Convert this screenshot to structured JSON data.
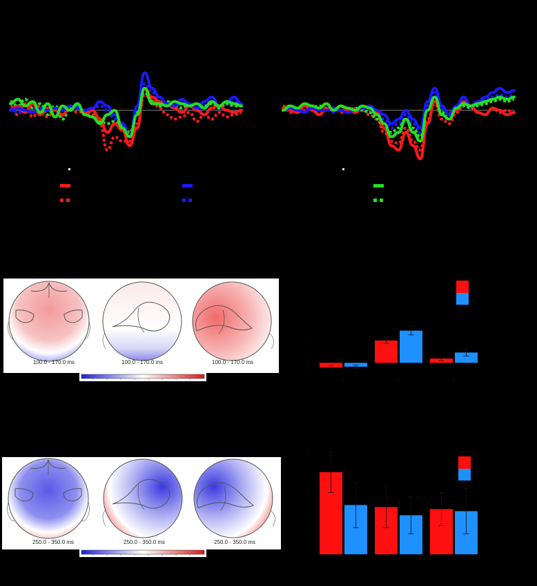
{
  "colors": {
    "red": "#ff1a1a",
    "blue": "#1a1aff",
    "green": "#22e022",
    "bar_red": "#ff1010",
    "bar_blue": "#1e90ff",
    "head_outline": "#555555",
    "background": "#000000"
  },
  "topomaps": {
    "row1": [
      "100.0 - 170.0 ms",
      "100.0 - 170.0 ms",
      "100.0 - 170.0 ms"
    ],
    "row2": [
      "250.0 - 350.0 ms",
      "250.0 - 350.0 ms",
      "250.0 - 350.0 ms"
    ]
  },
  "chart_data": [
    {
      "type": "line",
      "panel": "left waveforms",
      "series": [
        {
          "color": "red",
          "style": "solid",
          "values": [
            0,
            2,
            -1,
            3,
            -2,
            1,
            0,
            -2,
            2,
            1,
            -1,
            0,
            -4,
            -10,
            -6,
            -9,
            -16,
            -8,
            10,
            6,
            4,
            3,
            1,
            -1,
            2,
            0,
            -2,
            1,
            2,
            0,
            -1,
            0
          ]
        },
        {
          "color": "red",
          "style": "dotted",
          "values": [
            2,
            -2,
            3,
            -3,
            2,
            -3,
            1,
            -3,
            2,
            -1,
            0,
            -2,
            -6,
            -18,
            -12,
            -14,
            -14,
            -6,
            7,
            5,
            1,
            -2,
            -4,
            -3,
            -1,
            -5,
            -2,
            -4,
            -1,
            -3,
            -2,
            -1
          ]
        },
        {
          "color": "blue",
          "style": "solid",
          "values": [
            0,
            1,
            0,
            -1,
            1,
            0,
            1,
            0,
            2,
            1,
            0,
            1,
            4,
            2,
            -2,
            -6,
            -12,
            2,
            17,
            10,
            6,
            3,
            2,
            5,
            3,
            1,
            4,
            6,
            2,
            4,
            6,
            3
          ]
        },
        {
          "color": "blue",
          "style": "dotted",
          "values": [
            1,
            -1,
            0,
            1,
            -2,
            0,
            -1,
            1,
            0,
            2,
            -1,
            0,
            2,
            0,
            -4,
            -6,
            -10,
            0,
            12,
            8,
            4,
            2,
            1,
            3,
            2,
            0,
            2,
            4,
            1,
            3,
            4,
            2
          ]
        },
        {
          "color": "green",
          "style": "solid",
          "values": [
            3,
            5,
            2,
            4,
            -1,
            3,
            -3,
            2,
            0,
            3,
            -2,
            -3,
            -6,
            -2,
            0,
            -8,
            -12,
            -2,
            10,
            3,
            3,
            2,
            4,
            3,
            2,
            3,
            1,
            4,
            2,
            4,
            3,
            2
          ]
        },
        {
          "color": "green",
          "style": "dotted",
          "values": [
            4,
            2,
            5,
            1,
            3,
            -2,
            2,
            -4,
            1,
            2,
            -1,
            0,
            -5,
            -6,
            -5,
            -7,
            -10,
            -1,
            8,
            4,
            2,
            4,
            2,
            1,
            3,
            1,
            2,
            3,
            1,
            3,
            2,
            2
          ]
        }
      ]
    },
    {
      "type": "line",
      "panel": "right waveforms",
      "series": [
        {
          "color": "red",
          "style": "solid",
          "values": [
            1,
            0,
            -1,
            2,
            0,
            -2,
            1,
            0,
            2,
            0,
            -1,
            1,
            2,
            -1,
            -8,
            -16,
            -18,
            -10,
            -16,
            -22,
            -6,
            4,
            -2,
            -4,
            0,
            4,
            2,
            -1,
            -2,
            1,
            0,
            -2,
            -1
          ]
        },
        {
          "color": "red",
          "style": "dotted",
          "values": [
            2,
            -1,
            1,
            0,
            2,
            -2,
            0,
            1,
            -1,
            0,
            1,
            0,
            -2,
            -4,
            -10,
            -14,
            -15,
            -8,
            -14,
            -18,
            -4,
            3,
            -4,
            -6,
            -1,
            2,
            1,
            -1,
            -2,
            1,
            -1,
            0,
            -1
          ]
        },
        {
          "color": "blue",
          "style": "solid",
          "values": [
            0,
            1,
            0,
            -1,
            1,
            0,
            0,
            1,
            0,
            -1,
            0,
            1,
            2,
            0,
            -2,
            -6,
            -4,
            0,
            -4,
            -8,
            4,
            10,
            2,
            -2,
            2,
            6,
            2,
            4,
            6,
            8,
            10,
            8,
            9
          ]
        },
        {
          "color": "blue",
          "style": "dotted",
          "values": [
            1,
            0,
            -1,
            0,
            1,
            0,
            1,
            -1,
            0,
            0,
            1,
            0,
            -1,
            -2,
            -4,
            -8,
            -6,
            -2,
            -6,
            -10,
            2,
            8,
            1,
            -1,
            2,
            4,
            1,
            3,
            5,
            6,
            7,
            6,
            7
          ]
        },
        {
          "color": "green",
          "style": "solid",
          "values": [
            0,
            2,
            1,
            3,
            2,
            1,
            3,
            0,
            2,
            1,
            0,
            2,
            1,
            -2,
            -6,
            -12,
            -10,
            -4,
            -10,
            -14,
            0,
            6,
            -2,
            -4,
            1,
            3,
            2,
            3,
            4,
            5,
            6,
            5,
            6
          ]
        },
        {
          "color": "green",
          "style": "dotted",
          "values": [
            1,
            2,
            0,
            3,
            1,
            2,
            1,
            0,
            2,
            -1,
            1,
            0,
            -1,
            -4,
            -8,
            -10,
            -8,
            -4,
            -8,
            -12,
            0,
            4,
            -1,
            -2,
            1,
            2,
            1,
            2,
            3,
            4,
            5,
            4,
            5
          ]
        }
      ]
    },
    {
      "type": "bar",
      "panel": "upper bar chart",
      "categories": [
        "",
        "",
        ""
      ],
      "series": [
        {
          "color": "red",
          "values": [
            -1.1,
            5.2,
            1.0
          ],
          "errors": [
            0.5,
            0.7,
            0.5
          ]
        },
        {
          "color": "blue",
          "values": [
            -0.9,
            7.5,
            2.4
          ],
          "errors": [
            0.4,
            1.0,
            0.8
          ]
        }
      ],
      "ylim": [
        -3,
        10
      ]
    },
    {
      "type": "bar",
      "panel": "lower bar chart",
      "categories": [
        "",
        "",
        ""
      ],
      "series": [
        {
          "color": "red",
          "values": [
            4.0,
            2.3,
            2.2
          ],
          "errors": [
            1.0,
            1.0,
            0.8
          ]
        },
        {
          "color": "blue",
          "values": [
            2.4,
            1.9,
            2.1
          ],
          "errors": [
            1.1,
            0.9,
            1.1
          ]
        }
      ],
      "ylim": [
        0,
        5
      ]
    }
  ]
}
